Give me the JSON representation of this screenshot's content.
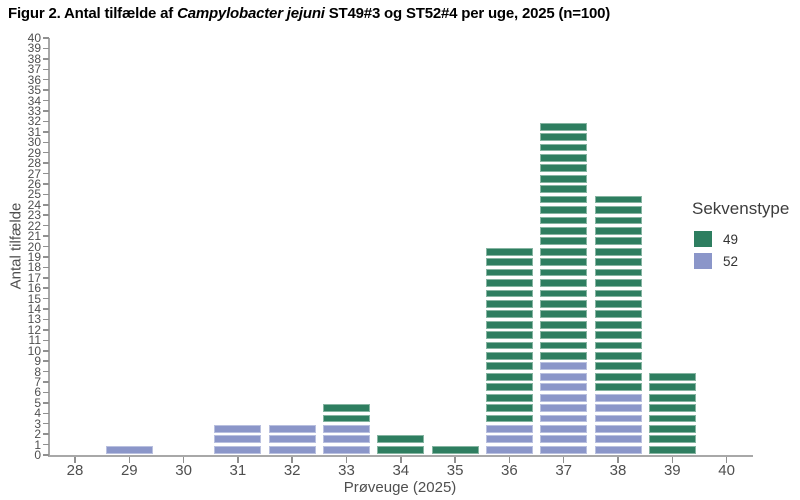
{
  "title": {
    "part1": "Figur 2. Antal tilfælde af ",
    "italic": "Campylobacter jejuni",
    "part2": " ST49#3 og ST52#4 per uge, 2025 (n=100)"
  },
  "chart_data": {
    "type": "bar",
    "stacked": true,
    "unit_chart": true,
    "title": "Figur 2. Antal tilfælde af Campylobacter jejuni ST49#3 og ST52#4 per uge, 2025 (n=100)",
    "xlabel": "Prøveuge (2025)",
    "ylabel": "Antal tilfælde",
    "n_total": 100,
    "x": [
      28,
      29,
      30,
      31,
      32,
      33,
      34,
      35,
      36,
      37,
      38,
      39,
      40
    ],
    "series": [
      {
        "name": "52",
        "color": "#8b96c9",
        "border_color": "#b9c0df",
        "values": [
          0,
          1,
          0,
          3,
          3,
          3,
          0,
          0,
          3,
          9,
          6,
          0,
          0
        ]
      },
      {
        "name": "49",
        "color": "#2e7e60",
        "border_color": "#86b5a2",
        "values": [
          0,
          0,
          0,
          0,
          0,
          2,
          2,
          1,
          17,
          23,
          19,
          8,
          0
        ]
      }
    ],
    "totals_per_week": [
      0,
      1,
      0,
      3,
      3,
      5,
      2,
      1,
      20,
      32,
      25,
      8,
      0
    ],
    "ylim": [
      0,
      40
    ],
    "ytick_step": 1,
    "grid": false,
    "legend": {
      "title": "Sekvenstype",
      "position": "right",
      "entries": [
        {
          "label": "49",
          "series": "49"
        },
        {
          "label": "52",
          "series": "52"
        }
      ]
    }
  }
}
